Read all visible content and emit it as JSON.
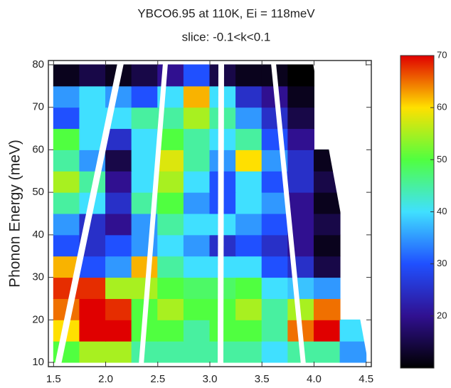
{
  "chart_data": {
    "type": "heatmap",
    "title": "YBCO6.95 at 110K, Ei = 118meV",
    "subtitle": "slice: -0.1<k<0.1",
    "y_label": "Phonon Energy (meV)",
    "x": [
      1.625,
      1.875,
      2.125,
      2.375,
      2.625,
      2.875,
      3.125,
      3.375,
      3.625,
      3.875,
      4.125,
      4.375
    ],
    "y": [
      12.5,
      17.5,
      22.5,
      27.5,
      32.5,
      37.5,
      42.5,
      47.5,
      52.5,
      57.5,
      62.5,
      67.5,
      72.5,
      77.5
    ],
    "values": [
      [
        50,
        55,
        55,
        45,
        45,
        45,
        45,
        45,
        40,
        45,
        45,
        35
      ],
      [
        60,
        70,
        70,
        50,
        50,
        45,
        50,
        50,
        45,
        65,
        70,
        40
      ],
      [
        65,
        70,
        68,
        50,
        55,
        50,
        50,
        55,
        45,
        55,
        65,
        null
      ],
      [
        68,
        68,
        55,
        55,
        50,
        48,
        48,
        50,
        40,
        38,
        35,
        null
      ],
      [
        62,
        30,
        35,
        62,
        45,
        40,
        40,
        40,
        30,
        25,
        15,
        null
      ],
      [
        30,
        25,
        30,
        35,
        40,
        35,
        25,
        30,
        25,
        20,
        12,
        null
      ],
      [
        35,
        25,
        20,
        35,
        45,
        40,
        40,
        35,
        30,
        20,
        15,
        null
      ],
      [
        45,
        40,
        25,
        45,
        50,
        35,
        30,
        40,
        35,
        20,
        12,
        null
      ],
      [
        55,
        45,
        20,
        40,
        55,
        40,
        30,
        40,
        30,
        25,
        15,
        null
      ],
      [
        45,
        35,
        15,
        40,
        58,
        45,
        35,
        60,
        35,
        25,
        12,
        null
      ],
      [
        50,
        40,
        25,
        40,
        50,
        45,
        40,
        45,
        30,
        20,
        null,
        null
      ],
      [
        30,
        40,
        40,
        45,
        45,
        55,
        45,
        35,
        25,
        15,
        null,
        null
      ],
      [
        35,
        40,
        35,
        30,
        40,
        62,
        40,
        25,
        20,
        12,
        null,
        null
      ],
      [
        12,
        15,
        12,
        15,
        20,
        30,
        15,
        12,
        12,
        10,
        null,
        null
      ]
    ],
    "xlim": [
      1.45,
      4.55
    ],
    "ylim": [
      9,
      81
    ],
    "xticks": [
      1.5,
      {
        "value": 2,
        "label": "2.0"
      },
      2.5,
      {
        "value": 3,
        "label": "3.0"
      },
      3.5,
      {
        "value": 4,
        "label": "4.0"
      },
      4.5
    ],
    "yticks": [
      10,
      20,
      30,
      40,
      50,
      60,
      70,
      80
    ],
    "clim": [
      10,
      70
    ],
    "cticks": [
      20,
      30,
      40,
      50,
      60,
      70
    ],
    "colormap": [
      "#000000",
      "#301090",
      "#2050ff",
      "#40e0ff",
      "#50ff40",
      "#ffe000",
      "#e00000"
    ]
  }
}
